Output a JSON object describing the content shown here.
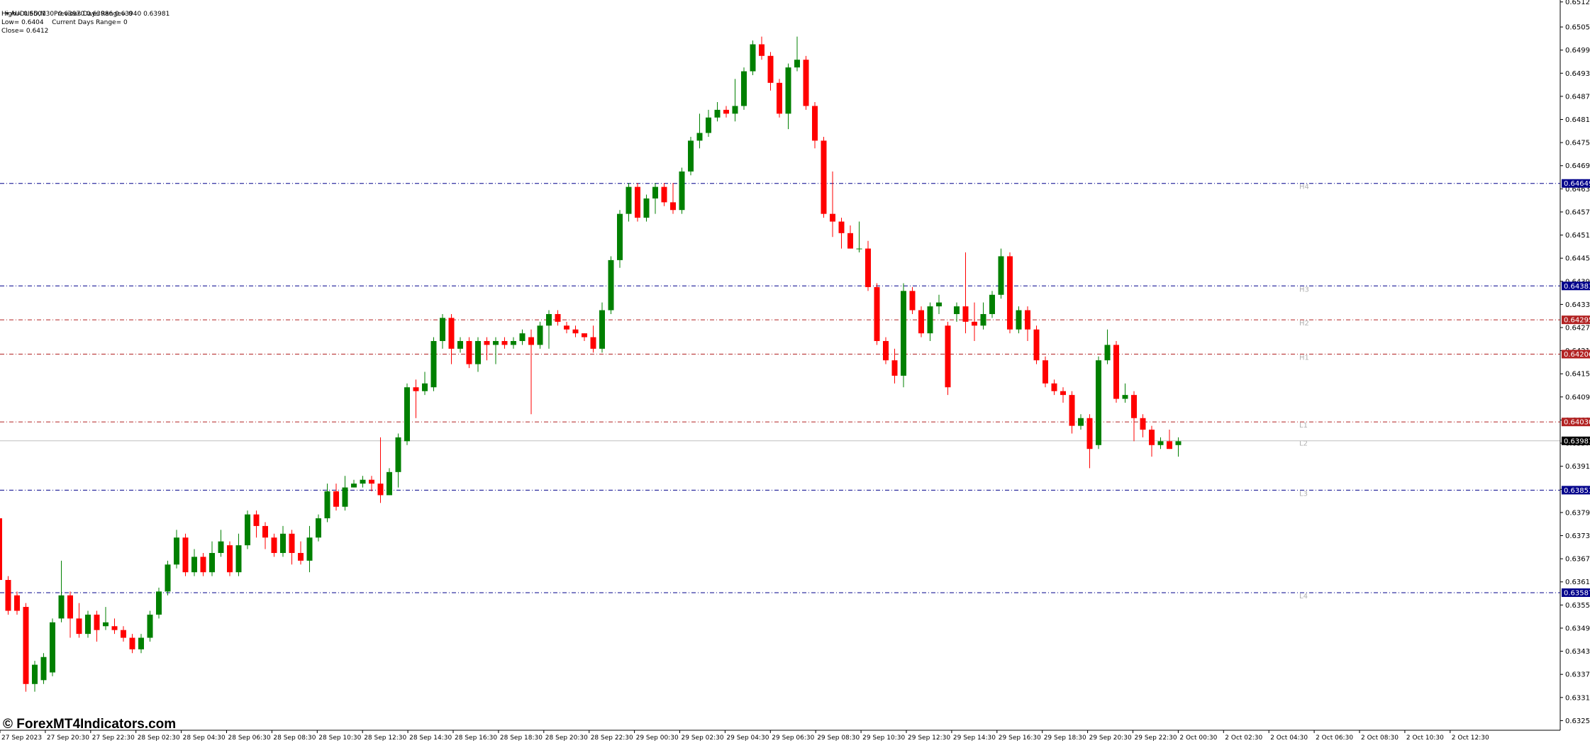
{
  "info": {
    "symbol_line": "AUDUSD,M30  0.63970 0.63986 0.63940 0.63981",
    "high_line": "High= 0.6501",
    "prev_range": "Previous Days Range= 0",
    "low_line": "Low= 0.6404",
    "curr_range": "Current Days Range= 0",
    "close_line": "Close= 0.6412"
  },
  "watermark": "© ForexMT4Indicators.com",
  "colors": {
    "bull": "#008000",
    "bear": "#ff0000",
    "blue_line": "#00008b",
    "red_line": "#b22222",
    "pivot_label": "#b0b0b0",
    "text": "#000000"
  },
  "chart_data": {
    "type": "candlestick",
    "symbol": "AUDUSD",
    "timeframe": "M30",
    "price_ticks": [
      "0.65120",
      "0.65055",
      "0.64995",
      "0.64935",
      "0.64875",
      "0.64815",
      "0.64755",
      "0.64695",
      "0.64635",
      "0.64575",
      "0.64515",
      "0.64455",
      "0.64395",
      "0.64335",
      "0.64275",
      "0.64215",
      "0.64155",
      "0.64095",
      "0.64035",
      "0.63975",
      "0.63915",
      "0.63855",
      "0.63795",
      "0.63735",
      "0.63675",
      "0.63615",
      "0.63555",
      "0.63495",
      "0.63435",
      "0.63375",
      "0.63315",
      "0.63255"
    ],
    "ylim": [
      0.6323,
      0.65125
    ],
    "time_ticks": [
      "27 Sep 2023",
      "27 Sep 20:30",
      "27 Sep 22:30",
      "28 Sep 02:30",
      "28 Sep 04:30",
      "28 Sep 06:30",
      "28 Sep 08:30",
      "28 Sep 10:30",
      "28 Sep 12:30",
      "28 Sep 14:30",
      "28 Sep 16:30",
      "28 Sep 18:30",
      "28 Sep 20:30",
      "28 Sep 22:30",
      "29 Sep 00:30",
      "29 Sep 02:30",
      "29 Sep 04:30",
      "29 Sep 06:30",
      "29 Sep 08:30",
      "29 Sep 10:30",
      "29 Sep 12:30",
      "29 Sep 14:30",
      "29 Sep 16:30",
      "29 Sep 18:30",
      "29 Sep 20:30",
      "29 Sep 22:30",
      "2 Oct 00:30",
      "2 Oct 02:30",
      "2 Oct 04:30",
      "2 Oct 06:30",
      "2 Oct 08:30",
      "2 Oct 10:30",
      "2 Oct 12:30"
    ],
    "levels": [
      {
        "name": "H4",
        "price": 0.64649,
        "label": "0.64649",
        "color": "blue"
      },
      {
        "name": "H3",
        "price": 0.64383,
        "label": "0.64383",
        "color": "blue"
      },
      {
        "name": "H2",
        "price": 0.64295,
        "label": "0.64295",
        "color": "red"
      },
      {
        "name": "H1",
        "price": 0.64206,
        "label": "0.64206",
        "color": "red"
      },
      {
        "name": "L1",
        "price": 0.6403,
        "label": "0.64030",
        "color": "red"
      },
      {
        "name": "L2",
        "price": null,
        "label": "",
        "color": "none"
      },
      {
        "name": "L3",
        "price": 0.63853,
        "label": "0.63853",
        "color": "blue"
      },
      {
        "name": "L4",
        "price": 0.63587,
        "label": "0.63587",
        "color": "blue"
      }
    ],
    "current_price": {
      "price": 0.63981,
      "label": "0.63981"
    },
    "candles": [
      [
        0.6378,
        0.6362,
        0.6379,
        0.6362
      ],
      [
        0.6362,
        0.6354,
        0.6363,
        0.6353
      ],
      [
        0.6358,
        0.6354,
        0.6359,
        0.6353
      ],
      [
        0.6355,
        0.6335,
        0.6356,
        0.6333
      ],
      [
        0.6335,
        0.634,
        0.6341,
        0.6333
      ],
      [
        0.6336,
        0.6342,
        0.6343,
        0.6335
      ],
      [
        0.6338,
        0.6351,
        0.6352,
        0.6337
      ],
      [
        0.6352,
        0.6358,
        0.6367,
        0.6351
      ],
      [
        0.6358,
        0.6352,
        0.6359,
        0.6347
      ],
      [
        0.6352,
        0.6348,
        0.6356,
        0.6347
      ],
      [
        0.6348,
        0.6353,
        0.6354,
        0.6347
      ],
      [
        0.6353,
        0.6349,
        0.6354,
        0.6346
      ],
      [
        0.635,
        0.6351,
        0.6355,
        0.6349
      ],
      [
        0.635,
        0.6349,
        0.6352,
        0.6348
      ],
      [
        0.6349,
        0.6347,
        0.635,
        0.6346
      ],
      [
        0.6347,
        0.6344,
        0.6348,
        0.6343
      ],
      [
        0.6344,
        0.6347,
        0.6348,
        0.6343
      ],
      [
        0.6347,
        0.6353,
        0.6354,
        0.6346
      ],
      [
        0.6353,
        0.6359,
        0.636,
        0.6352
      ],
      [
        0.6359,
        0.6366,
        0.6367,
        0.6358
      ],
      [
        0.6366,
        0.6373,
        0.6375,
        0.6365
      ],
      [
        0.6373,
        0.6364,
        0.6374,
        0.6363
      ],
      [
        0.6364,
        0.6368,
        0.637,
        0.6363
      ],
      [
        0.6368,
        0.6364,
        0.6369,
        0.6363
      ],
      [
        0.6364,
        0.6369,
        0.6372,
        0.6363
      ],
      [
        0.6369,
        0.6372,
        0.6375,
        0.6368
      ],
      [
        0.6371,
        0.6364,
        0.6372,
        0.6363
      ],
      [
        0.6364,
        0.6371,
        0.6374,
        0.6363
      ],
      [
        0.6371,
        0.6379,
        0.638,
        0.637
      ],
      [
        0.6379,
        0.6376,
        0.638,
        0.6373
      ],
      [
        0.6376,
        0.6373,
        0.6377,
        0.637
      ],
      [
        0.6373,
        0.6369,
        0.6374,
        0.6368
      ],
      [
        0.6369,
        0.6374,
        0.6376,
        0.6368
      ],
      [
        0.6374,
        0.6369,
        0.6375,
        0.6366
      ],
      [
        0.6369,
        0.6367,
        0.6372,
        0.6366
      ],
      [
        0.6367,
        0.6373,
        0.6376,
        0.6364
      ],
      [
        0.6373,
        0.6378,
        0.6379,
        0.6372
      ],
      [
        0.6378,
        0.6385,
        0.6387,
        0.6377
      ],
      [
        0.6385,
        0.6381,
        0.6387,
        0.638
      ],
      [
        0.6381,
        0.6386,
        0.6389,
        0.638
      ],
      [
        0.6386,
        0.6387,
        0.6388,
        0.6386
      ],
      [
        0.6387,
        0.6388,
        0.6389,
        0.6386
      ],
      [
        0.6388,
        0.6387,
        0.6389,
        0.6385
      ],
      [
        0.6387,
        0.6384,
        0.6399,
        0.6382
      ],
      [
        0.6384,
        0.639,
        0.6391,
        0.6384
      ],
      [
        0.639,
        0.6399,
        0.64,
        0.6386
      ],
      [
        0.6398,
        0.6412,
        0.6413,
        0.6397
      ],
      [
        0.6412,
        0.6411,
        0.6414,
        0.6404
      ],
      [
        0.6411,
        0.6413,
        0.6416,
        0.641
      ],
      [
        0.6412,
        0.6424,
        0.6425,
        0.6411
      ],
      [
        0.6424,
        0.643,
        0.6431,
        0.6422
      ],
      [
        0.643,
        0.6422,
        0.6431,
        0.6418
      ],
      [
        0.6422,
        0.6424,
        0.6425,
        0.6421
      ],
      [
        0.6424,
        0.6418,
        0.6425,
        0.6417
      ],
      [
        0.6418,
        0.6424,
        0.6425,
        0.6416
      ],
      [
        0.6424,
        0.6423,
        0.6425,
        0.6419
      ],
      [
        0.6423,
        0.6424,
        0.6425,
        0.6418
      ],
      [
        0.6424,
        0.6423,
        0.6425,
        0.6422
      ],
      [
        0.6423,
        0.6424,
        0.6425,
        0.6422
      ],
      [
        0.6424,
        0.6426,
        0.6427,
        0.6423
      ],
      [
        0.6425,
        0.6423,
        0.6427,
        0.6405
      ],
      [
        0.6423,
        0.6428,
        0.6429,
        0.6422
      ],
      [
        0.6428,
        0.6431,
        0.6432,
        0.6422
      ],
      [
        0.6431,
        0.6429,
        0.6432,
        0.6428
      ],
      [
        0.6428,
        0.6427,
        0.6429,
        0.6426
      ],
      [
        0.6427,
        0.6426,
        0.6428,
        0.6425
      ],
      [
        0.6426,
        0.6425,
        0.6426,
        0.6424
      ],
      [
        0.6425,
        0.6422,
        0.6428,
        0.6421
      ],
      [
        0.6422,
        0.6432,
        0.6434,
        0.6421
      ],
      [
        0.6432,
        0.6445,
        0.6446,
        0.6431
      ],
      [
        0.6445,
        0.6457,
        0.6458,
        0.6443
      ],
      [
        0.6457,
        0.6464,
        0.6465,
        0.6455
      ],
      [
        0.6464,
        0.6456,
        0.6465,
        0.6455
      ],
      [
        0.6456,
        0.6461,
        0.6462,
        0.6455
      ],
      [
        0.6461,
        0.6464,
        0.6465,
        0.6457
      ],
      [
        0.6464,
        0.646,
        0.6465,
        0.6459
      ],
      [
        0.646,
        0.6458,
        0.6465,
        0.6457
      ],
      [
        0.6458,
        0.6468,
        0.6469,
        0.6457
      ],
      [
        0.6468,
        0.6476,
        0.6477,
        0.6467
      ],
      [
        0.6476,
        0.6478,
        0.6483,
        0.6474
      ],
      [
        0.6478,
        0.6482,
        0.6484,
        0.6477
      ],
      [
        0.6482,
        0.6484,
        0.6486,
        0.6481
      ],
      [
        0.6484,
        0.6483,
        0.6485,
        0.6482
      ],
      [
        0.6483,
        0.6485,
        0.6492,
        0.6481
      ],
      [
        0.6485,
        0.6494,
        0.6495,
        0.6484
      ],
      [
        0.6494,
        0.6501,
        0.6502,
        0.6493
      ],
      [
        0.6501,
        0.6498,
        0.6503,
        0.6497
      ],
      [
        0.6498,
        0.6491,
        0.6499,
        0.6489
      ],
      [
        0.6491,
        0.6483,
        0.6492,
        0.6482
      ],
      [
        0.6483,
        0.6495,
        0.6496,
        0.6479
      ],
      [
        0.6495,
        0.6497,
        0.6503,
        0.6494
      ],
      [
        0.6497,
        0.6485,
        0.6498,
        0.6484
      ],
      [
        0.6485,
        0.6476,
        0.6486,
        0.6474
      ],
      [
        0.6476,
        0.6457,
        0.6477,
        0.6456
      ],
      [
        0.6457,
        0.6455,
        0.6468,
        0.6451
      ],
      [
        0.6455,
        0.6452,
        0.6456,
        0.6448
      ],
      [
        0.6452,
        0.6448,
        0.6454,
        0.6448
      ],
      [
        0.6448,
        0.6448,
        0.6455,
        0.6447
      ],
      [
        0.6448,
        0.6438,
        0.645,
        0.6437
      ],
      [
        0.6438,
        0.6424,
        0.6439,
        0.6423
      ],
      [
        0.6424,
        0.6419,
        0.6425,
        0.6418
      ],
      [
        0.6419,
        0.6415,
        0.6422,
        0.6413
      ],
      [
        0.6415,
        0.6437,
        0.6439,
        0.6412
      ],
      [
        0.6437,
        0.6432,
        0.6438,
        0.6431
      ],
      [
        0.6432,
        0.6426,
        0.6433,
        0.6425
      ],
      [
        0.6426,
        0.6433,
        0.6434,
        0.6424
      ],
      [
        0.6433,
        0.6434,
        0.6436,
        0.6431
      ],
      [
        0.6428,
        0.6412,
        0.6429,
        0.641
      ],
      [
        0.6431,
        0.6433,
        0.6434,
        0.6429
      ],
      [
        0.6433,
        0.6429,
        0.6447,
        0.6426
      ],
      [
        0.6429,
        0.6428,
        0.6434,
        0.6424
      ],
      [
        0.6428,
        0.6431,
        0.6434,
        0.6427
      ],
      [
        0.6431,
        0.6436,
        0.6437,
        0.643
      ],
      [
        0.6436,
        0.6446,
        0.6448,
        0.6435
      ],
      [
        0.6446,
        0.6427,
        0.6447,
        0.6426
      ],
      [
        0.6427,
        0.6432,
        0.6433,
        0.6426
      ],
      [
        0.6432,
        0.6427,
        0.6433,
        0.6424
      ],
      [
        0.6427,
        0.6419,
        0.6428,
        0.6418
      ],
      [
        0.6419,
        0.6413,
        0.642,
        0.6412
      ],
      [
        0.6413,
        0.6411,
        0.6414,
        0.641
      ],
      [
        0.6411,
        0.641,
        0.6412,
        0.6408
      ],
      [
        0.641,
        0.6402,
        0.6411,
        0.64
      ],
      [
        0.6402,
        0.6404,
        0.6405,
        0.6401
      ],
      [
        0.6404,
        0.6396,
        0.6405,
        0.6391
      ],
      [
        0.6397,
        0.6419,
        0.642,
        0.6396
      ],
      [
        0.6419,
        0.6423,
        0.6427,
        0.6418
      ],
      [
        0.6423,
        0.6409,
        0.6424,
        0.6408
      ],
      [
        0.6409,
        0.641,
        0.6413,
        0.6408
      ],
      [
        0.641,
        0.6404,
        0.6411,
        0.6398
      ],
      [
        0.6404,
        0.6401,
        0.6405,
        0.6399
      ],
      [
        0.6401,
        0.6397,
        0.6402,
        0.6394
      ],
      [
        0.6397,
        0.6398,
        0.6399,
        0.6396
      ],
      [
        0.6398,
        0.6396,
        0.6401,
        0.6396
      ],
      [
        0.6397,
        0.6398,
        0.6399,
        0.6394
      ]
    ]
  }
}
